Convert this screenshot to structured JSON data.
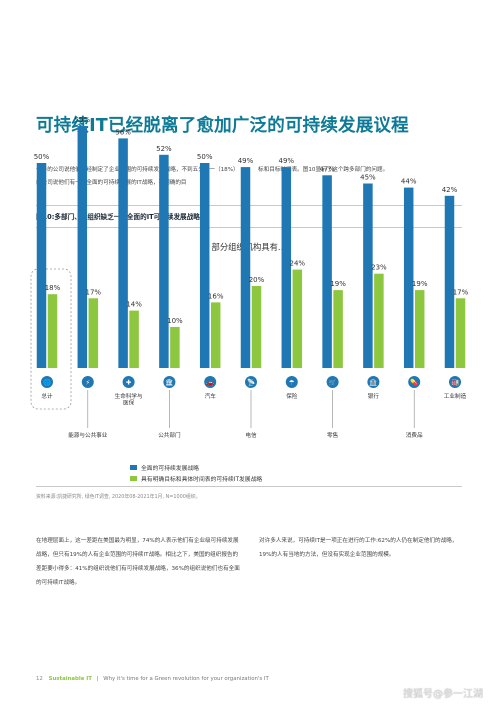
{
  "title": "可持续IT已经脱离了愈加广泛的可持续发展议程",
  "intro_left": "一半的公司说他们已经制定了企业范围的可持续发展战略，不到五分之一（18%）的公司说他们有一个全面的可持续发展的IT战略，有明确的目",
  "intro_right": "标和目标时间表。图10显示了这个跨多部门的问题。",
  "figure_title": "图10:多部门、多组织缺乏一个全面的IT可持续发展战略",
  "colors": {
    "series1": "#1f78b4",
    "series2": "#8dc63f",
    "title": "#0e7a96"
  },
  "chart_data": {
    "type": "bar",
    "title": "部分组织机构具有....",
    "categories": [
      "总计",
      "能源与公共事业",
      "生命科学与医保",
      "公共部门",
      "汽车",
      "电信",
      "保险",
      "零售",
      "银行",
      "消费品",
      "工业制造"
    ],
    "category_icons": [
      "globe-icon",
      "power-tower-icon",
      "medical-icon",
      "government-building-icon",
      "car-icon",
      "satellite-icon",
      "umbrella-icon",
      "shopping-cart-icon",
      "bank-icon",
      "pill-icon",
      "factory-icon"
    ],
    "series": [
      {
        "name": "全面的可持续发展战略",
        "values": [
          50,
          59,
          56,
          52,
          50,
          49,
          49,
          47,
          45,
          44,
          42
        ]
      },
      {
        "name": "具有明确目标和具体时间表的可持续IT发展战略",
        "values": [
          18,
          17,
          14,
          10,
          16,
          20,
          24,
          19,
          23,
          19,
          17
        ]
      }
    ],
    "value_suffix": "%",
    "ylim": [
      0,
      60
    ]
  },
  "source": "资料来源:凯捷研究所, 绿色IT调查, 2020年08-2021年1月, N=1000组织。",
  "body_left": "在地理层面上，这一差距在美国最为明显，74%的人表示他们有企业级可持续发展战略，但只有19%的人有企业范围的可持续IT战略。相比之下，美国的组织报告的差距要小得多：41%的组织说他们有可持续发展战略，36%的组织说他们也有全面的可持续IT战略。",
  "body_right": "对许多人来说，可持续IT是一项正在进行的工作:62%的人仍在制定他们的战略，19%的人有当地的方法，但没有实现企业范围的规模。",
  "footer": {
    "page": "12",
    "brand": "Sustainable IT",
    "sep": "|",
    "tagline": "Why it's time for a Green revolution for your organization's IT"
  },
  "watermark": "搜狐号@参一江湖"
}
